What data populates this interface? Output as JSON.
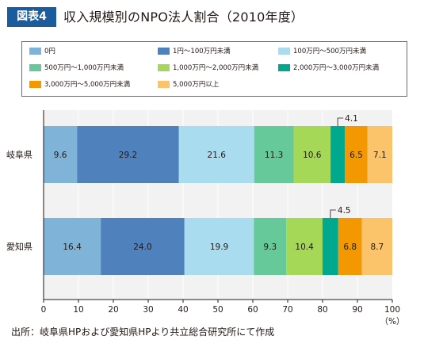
{
  "title": {
    "tag": "図表4",
    "text": "収入規模別のNPO法人割合（2010年度）"
  },
  "source_note": "出所：岐阜県HPおよび愛知県HPより共立総合研究所にて作成",
  "chart_data": {
    "type": "bar",
    "orientation": "horizontal",
    "stacked": true,
    "categories": [
      "岐阜県",
      "愛知県"
    ],
    "series": [
      {
        "name": "0円",
        "color": "#7fb3d8",
        "values": [
          9.6,
          16.4
        ]
      },
      {
        "name": "1円～100万円未満",
        "color": "#4f81bd",
        "values": [
          29.2,
          24.0
        ]
      },
      {
        "name": "100万円～500万円未満",
        "color": "#a8dcee",
        "values": [
          21.6,
          19.9
        ]
      },
      {
        "name": "500万円～1,000万円未満",
        "color": "#66c999",
        "values": [
          11.3,
          9.3
        ]
      },
      {
        "name": "1,000万円～2,000万円未満",
        "color": "#a6d857",
        "values": [
          10.6,
          10.4
        ]
      },
      {
        "name": "2,000万円～3,000万円未満",
        "color": "#00a88e",
        "values": [
          4.1,
          4.5
        ]
      },
      {
        "name": "3,000万円～5,000万円未満",
        "color": "#f39800",
        "values": [
          6.5,
          6.8
        ]
      },
      {
        "name": "5,000万円以上",
        "color": "#fcc46a",
        "values": [
          7.1,
          8.7
        ]
      }
    ],
    "data_labels": [
      [
        "9.6",
        "29.2",
        "21.6",
        "11.3",
        "10.6",
        "4.1",
        "6.5",
        "7.1"
      ],
      [
        "16.4",
        "24.0",
        "19.9",
        "9.3",
        "10.4",
        "4.5",
        "6.8",
        "8.7"
      ]
    ],
    "xlim": [
      0,
      100
    ],
    "x_ticks": [
      "0",
      "10",
      "20",
      "30",
      "40",
      "50",
      "60",
      "70",
      "80",
      "90",
      "100"
    ],
    "x_unit": "（%）",
    "legend": {
      "position": "top",
      "columns": 3
    },
    "background": "#f2f2f2",
    "grid": true
  }
}
